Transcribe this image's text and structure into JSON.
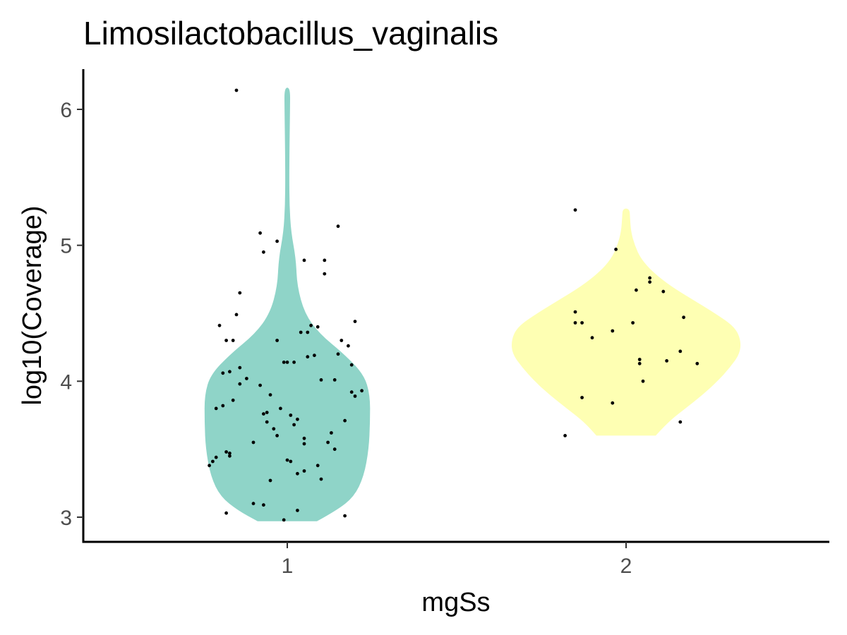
{
  "chart_data": {
    "type": "violin",
    "title": "Limosilactobacillus_vaginalis",
    "xlabel": "mgSs",
    "ylabel": "log10(Coverage)",
    "categories": [
      "1",
      "2"
    ],
    "yticks": [
      "3",
      "4",
      "5",
      "6"
    ],
    "ylim": [
      2.83,
      6.3
    ],
    "grid": false,
    "legend": "none",
    "colors": {
      "1": "#8fd4c8",
      "2": "#feffb3",
      "points": "#000000",
      "axis": "#000000",
      "tick_label": "#4d4d4d"
    },
    "violins": [
      {
        "category": "1",
        "profile": [
          [
            2.97,
            0.12
          ],
          [
            3.05,
            0.2
          ],
          [
            3.15,
            0.27
          ],
          [
            3.3,
            0.31
          ],
          [
            3.5,
            0.33
          ],
          [
            3.7,
            0.335
          ],
          [
            3.9,
            0.335
          ],
          [
            4.05,
            0.31
          ],
          [
            4.2,
            0.23
          ],
          [
            4.35,
            0.13
          ],
          [
            4.5,
            0.07
          ],
          [
            4.7,
            0.04
          ],
          [
            4.9,
            0.035
          ],
          [
            5.1,
            0.015
          ],
          [
            5.3,
            0.009
          ],
          [
            5.5,
            0.008
          ],
          [
            5.7,
            0.009
          ],
          [
            6.0,
            0.011
          ],
          [
            6.16,
            0.012
          ]
        ],
        "points": [
          [
            -0.15,
            6.14
          ],
          [
            -0.2,
            4.41
          ],
          [
            -0.15,
            4.49
          ],
          [
            -0.18,
            4.3
          ],
          [
            -0.16,
            4.3
          ],
          [
            -0.14,
            4.1
          ],
          [
            -0.17,
            4.07
          ],
          [
            -0.19,
            4.06
          ],
          [
            -0.12,
            4.02
          ],
          [
            -0.16,
            3.86
          ],
          [
            -0.19,
            3.82
          ],
          [
            -0.21,
            3.8
          ],
          [
            -0.14,
            3.98
          ],
          [
            -0.08,
            3.97
          ],
          [
            -0.05,
            3.9
          ],
          [
            -0.02,
            3.8
          ],
          [
            0.01,
            3.75
          ],
          [
            -0.06,
            3.77
          ],
          [
            -0.07,
            3.76
          ],
          [
            -0.04,
            3.65
          ],
          [
            -0.06,
            3.7
          ],
          [
            0.02,
            3.68
          ],
          [
            0.03,
            3.72
          ],
          [
            -0.1,
            3.55
          ],
          [
            -0.17,
            3.45
          ],
          [
            -0.21,
            3.44
          ],
          [
            -0.18,
            3.48
          ],
          [
            -0.22,
            3.41
          ],
          [
            -0.23,
            3.38
          ],
          [
            -0.17,
            3.47
          ],
          [
            0.0,
            3.42
          ],
          [
            0.01,
            3.41
          ],
          [
            0.03,
            3.32
          ],
          [
            -0.05,
            3.27
          ],
          [
            0.05,
            3.54
          ],
          [
            0.06,
            4.36
          ],
          [
            0.04,
            4.36
          ],
          [
            0.07,
            4.41
          ],
          [
            -0.03,
            4.3
          ],
          [
            0.09,
            4.4
          ],
          [
            0.06,
            4.18
          ],
          [
            0.08,
            4.19
          ],
          [
            -0.01,
            4.14
          ],
          [
            0.0,
            4.14
          ],
          [
            0.02,
            4.14
          ],
          [
            0.1,
            4.01
          ],
          [
            0.14,
            4.01
          ],
          [
            0.15,
            4.2
          ],
          [
            0.16,
            4.3
          ],
          [
            0.18,
            4.26
          ],
          [
            0.19,
            4.12
          ],
          [
            0.2,
            4.44
          ],
          [
            0.19,
            3.92
          ],
          [
            0.2,
            3.89
          ],
          [
            0.22,
            3.93
          ],
          [
            0.17,
            3.71
          ],
          [
            0.12,
            3.55
          ],
          [
            0.13,
            3.62
          ],
          [
            0.14,
            3.5
          ],
          [
            0.09,
            3.38
          ],
          [
            0.05,
            3.34
          ],
          [
            0.1,
            3.28
          ],
          [
            -0.08,
            5.09
          ],
          [
            -0.07,
            4.95
          ],
          [
            -0.03,
            5.03
          ],
          [
            0.05,
            4.89
          ],
          [
            0.11,
            4.89
          ],
          [
            0.11,
            4.79
          ],
          [
            0.15,
            5.14
          ],
          [
            -0.14,
            4.65
          ],
          [
            -0.18,
            3.03
          ],
          [
            -0.1,
            3.1
          ],
          [
            -0.07,
            3.09
          ],
          [
            0.03,
            3.05
          ],
          [
            -0.01,
            2.98
          ],
          [
            0.17,
            3.01
          ],
          [
            -0.03,
            3.6
          ],
          [
            0.05,
            3.58
          ]
        ]
      },
      {
        "category": "2",
        "profile": [
          [
            3.6,
            0.12
          ],
          [
            3.7,
            0.17
          ],
          [
            3.8,
            0.24
          ],
          [
            3.9,
            0.31
          ],
          [
            4.0,
            0.37
          ],
          [
            4.1,
            0.42
          ],
          [
            4.2,
            0.46
          ],
          [
            4.3,
            0.465
          ],
          [
            4.4,
            0.44
          ],
          [
            4.5,
            0.36
          ],
          [
            4.6,
            0.27
          ],
          [
            4.7,
            0.18
          ],
          [
            4.8,
            0.11
          ],
          [
            4.9,
            0.06
          ],
          [
            5.0,
            0.035
          ],
          [
            5.1,
            0.02
          ],
          [
            5.2,
            0.016
          ],
          [
            5.27,
            0.014
          ]
        ],
        "points": [
          [
            -0.15,
            5.26
          ],
          [
            -0.03,
            4.97
          ],
          [
            0.07,
            4.76
          ],
          [
            0.07,
            4.73
          ],
          [
            0.03,
            4.67
          ],
          [
            0.11,
            4.66
          ],
          [
            -0.15,
            4.51
          ],
          [
            -0.15,
            4.43
          ],
          [
            -0.13,
            4.43
          ],
          [
            0.17,
            4.47
          ],
          [
            -0.04,
            4.37
          ],
          [
            0.02,
            4.43
          ],
          [
            -0.1,
            4.32
          ],
          [
            0.04,
            4.16
          ],
          [
            0.04,
            4.13
          ],
          [
            0.12,
            4.15
          ],
          [
            0.16,
            4.22
          ],
          [
            0.21,
            4.13
          ],
          [
            0.05,
            4.0
          ],
          [
            -0.13,
            3.88
          ],
          [
            -0.04,
            3.84
          ],
          [
            0.16,
            3.7
          ],
          [
            -0.18,
            3.6
          ]
        ]
      }
    ]
  }
}
